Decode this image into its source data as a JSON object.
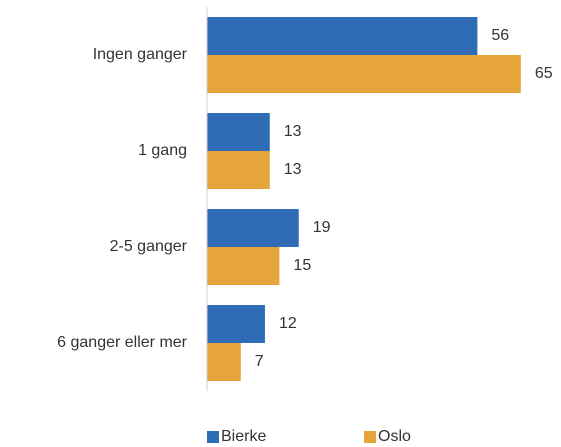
{
  "chart_data": {
    "type": "hbar",
    "categories": [
      "Ingen ganger",
      "1 gang",
      "2-5 ganger",
      "6 ganger eller mer"
    ],
    "series": [
      {
        "name": "Bierke",
        "color": "#2e6db6",
        "values": [
          56,
          13,
          19,
          12
        ]
      },
      {
        "name": "Oslo",
        "color": "#e6a53a",
        "values": [
          65,
          13,
          15,
          7
        ]
      }
    ],
    "xlim": [
      0,
      70
    ],
    "legend": "bottom"
  }
}
